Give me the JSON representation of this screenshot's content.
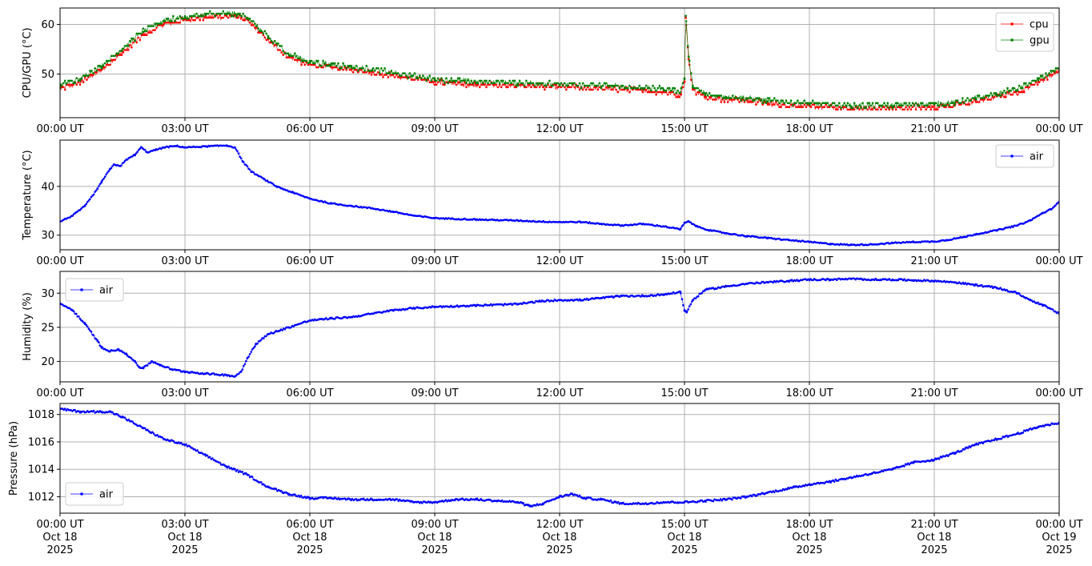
{
  "chart_data": [
    {
      "type": "line",
      "ylabel": "CPU/GPU (°C)",
      "ylim": [
        41.2,
        63.3
      ],
      "yticks": [
        50,
        60
      ],
      "grid": true,
      "legend": "top-right",
      "series": [
        {
          "name": "cpu",
          "color": "#ff0000",
          "x": [
            0,
            0.5,
            1,
            1.5,
            2,
            2.5,
            3,
            3.5,
            4,
            4.25,
            4.5,
            5,
            5.5,
            6,
            6.5,
            7,
            7.5,
            8,
            9,
            10,
            11,
            12,
            13,
            14,
            14.5,
            14.9,
            15,
            15.03,
            15.1,
            15.2,
            15.5,
            16,
            16.5,
            17,
            18,
            19,
            20,
            21,
            21.5,
            22,
            22.5,
            23,
            23.5,
            24
          ],
          "values": [
            47.2,
            48.5,
            51.0,
            54.5,
            58.0,
            60.2,
            61.0,
            61.6,
            61.7,
            61.7,
            61.0,
            57.0,
            53.5,
            52.0,
            51.5,
            51.0,
            50.5,
            49.8,
            48.5,
            48.0,
            47.8,
            47.5,
            47.2,
            46.8,
            46.5,
            46.0,
            48.5,
            61.3,
            53.0,
            47.0,
            45.5,
            45.0,
            44.8,
            44.2,
            43.6,
            43.2,
            43.2,
            43.6,
            43.8,
            44.6,
            45.5,
            46.5,
            48.5,
            50.8
          ]
        },
        {
          "name": "gpu",
          "color": "#008000",
          "x": [
            0,
            0.5,
            1,
            1.5,
            2,
            2.5,
            3,
            3.5,
            4,
            4.25,
            4.5,
            5,
            5.5,
            6,
            6.5,
            7,
            7.5,
            8,
            9,
            10,
            11,
            12,
            13,
            14,
            14.5,
            14.9,
            15,
            15.03,
            15.1,
            15.2,
            15.5,
            16,
            16.5,
            17,
            18,
            19,
            20,
            21,
            21.5,
            22,
            22.5,
            23,
            23.5,
            24
          ],
          "values": [
            47.6,
            49.0,
            51.5,
            55.0,
            58.5,
            60.7,
            61.3,
            61.9,
            62.0,
            62.0,
            61.3,
            57.3,
            53.8,
            52.3,
            51.8,
            51.3,
            50.8,
            50.1,
            48.8,
            48.3,
            48.1,
            47.8,
            47.5,
            47.1,
            46.8,
            46.3,
            49.0,
            61.7,
            53.5,
            47.3,
            45.8,
            45.3,
            45.0,
            44.5,
            43.9,
            43.5,
            43.5,
            43.9,
            44.1,
            44.9,
            45.8,
            46.8,
            48.8,
            51.0
          ]
        }
      ]
    },
    {
      "type": "line",
      "ylabel": "Temperature (°C)",
      "ylim": [
        27.0,
        49.5
      ],
      "yticks": [
        30,
        40
      ],
      "grid": true,
      "legend": "top-right",
      "series": [
        {
          "name": "air",
          "color": "#0000ff",
          "x": [
            0,
            0.3,
            0.6,
            0.9,
            1.0,
            1.2,
            1.3,
            1.45,
            1.6,
            1.8,
            1.95,
            2.1,
            2.3,
            2.5,
            2.8,
            3.0,
            3.5,
            4.0,
            4.2,
            4.4,
            4.6,
            4.9,
            5.2,
            5.6,
            6.0,
            6.5,
            7.0,
            7.5,
            8.0,
            8.5,
            9.0,
            10.0,
            11.0,
            11.5,
            12.0,
            12.5,
            13.0,
            13.5,
            14.0,
            14.5,
            14.9,
            15.0,
            15.1,
            15.3,
            15.6,
            16.0,
            16.5,
            17.0,
            17.5,
            18.0,
            18.5,
            19.0,
            19.5,
            20.0,
            20.5,
            21.0,
            21.3,
            21.7,
            22.0,
            22.5,
            23.0,
            23.3,
            23.6,
            23.8,
            24.0
          ],
          "values": [
            32.8,
            34.0,
            36.0,
            39.5,
            41.0,
            43.5,
            44.5,
            44.2,
            45.5,
            46.5,
            48.0,
            47.0,
            47.5,
            48.0,
            48.3,
            48.0,
            48.2,
            48.4,
            48.0,
            45.0,
            43.0,
            41.5,
            40.0,
            38.7,
            37.5,
            36.5,
            36.0,
            35.5,
            34.8,
            34.0,
            33.5,
            33.2,
            33.0,
            32.8,
            32.7,
            32.7,
            32.3,
            32.0,
            32.3,
            31.8,
            31.2,
            32.5,
            32.8,
            31.8,
            31.0,
            30.4,
            29.8,
            29.4,
            29.0,
            28.6,
            28.2,
            28.0,
            28.1,
            28.4,
            28.6,
            28.7,
            29.0,
            29.6,
            30.2,
            31.0,
            32.0,
            33.0,
            34.5,
            35.3,
            36.8
          ]
        }
      ]
    },
    {
      "type": "line",
      "ylabel": "Humidity (%)",
      "ylim": [
        17.0,
        33.2
      ],
      "yticks": [
        20,
        25,
        30
      ],
      "grid": true,
      "legend": "top-left",
      "series": [
        {
          "name": "air",
          "color": "#0000ff",
          "x": [
            0,
            0.3,
            0.6,
            0.9,
            1.0,
            1.2,
            1.4,
            1.6,
            1.8,
            1.9,
            2.0,
            2.2,
            2.4,
            2.7,
            3.0,
            3.5,
            4.0,
            4.2,
            4.35,
            4.5,
            4.7,
            5.0,
            5.5,
            6.0,
            6.5,
            7.0,
            7.5,
            8.0,
            8.5,
            9.0,
            10.0,
            11.0,
            11.5,
            12.0,
            12.5,
            13.0,
            13.5,
            14.0,
            14.5,
            14.9,
            15.0,
            15.05,
            15.2,
            15.5,
            16.0,
            16.5,
            17.0,
            17.5,
            18.0,
            18.5,
            19.0,
            19.5,
            20.0,
            20.5,
            21.0,
            21.5,
            22.0,
            22.5,
            23.0,
            23.3,
            23.6,
            24.0
          ],
          "values": [
            28.5,
            27.5,
            25.5,
            23.0,
            22.0,
            21.5,
            21.8,
            21.0,
            20.0,
            19.2,
            19.0,
            20.0,
            19.5,
            18.8,
            18.5,
            18.2,
            18.0,
            17.8,
            18.5,
            20.5,
            22.5,
            24.0,
            25.0,
            26.0,
            26.3,
            26.5,
            27.0,
            27.5,
            27.8,
            28.0,
            28.2,
            28.4,
            28.8,
            29.0,
            29.0,
            29.3,
            29.6,
            29.6,
            29.8,
            30.2,
            27.5,
            27.2,
            29.0,
            30.5,
            31.0,
            31.4,
            31.6,
            31.8,
            32.0,
            32.0,
            32.1,
            32.0,
            32.0,
            31.9,
            31.8,
            31.6,
            31.2,
            30.8,
            30.0,
            29.0,
            28.3,
            27.0
          ]
        }
      ]
    },
    {
      "type": "line",
      "ylabel": "Pressure (hPa)",
      "ylim": [
        1010.8,
        1018.8
      ],
      "yticks": [
        1012,
        1014,
        1016,
        1018
      ],
      "grid": true,
      "legend": "bottom-left",
      "series": [
        {
          "name": "air",
          "color": "#0000ff",
          "x": [
            0,
            0.5,
            1.0,
            1.2,
            1.5,
            2.0,
            2.5,
            3.0,
            3.5,
            4.0,
            4.5,
            5.0,
            5.5,
            6.0,
            6.5,
            7.0,
            7.5,
            8.0,
            8.5,
            9.0,
            9.5,
            10.0,
            10.5,
            11.0,
            11.3,
            11.6,
            12.0,
            12.3,
            12.6,
            13.0,
            13.5,
            14.0,
            14.5,
            15.0,
            15.5,
            16.0,
            16.5,
            17.0,
            17.5,
            18.0,
            18.5,
            19.0,
            19.5,
            20.0,
            20.5,
            21.0,
            21.5,
            22.0,
            22.5,
            23.0,
            23.5,
            24.0
          ],
          "values": [
            1018.4,
            1018.2,
            1018.2,
            1018.2,
            1017.8,
            1017.0,
            1016.2,
            1015.8,
            1015.0,
            1014.2,
            1013.6,
            1012.7,
            1012.2,
            1011.9,
            1011.9,
            1011.8,
            1011.8,
            1011.8,
            1011.6,
            1011.6,
            1011.8,
            1011.8,
            1011.7,
            1011.6,
            1011.3,
            1011.5,
            1012.0,
            1012.2,
            1011.9,
            1011.8,
            1011.5,
            1011.5,
            1011.6,
            1011.6,
            1011.7,
            1011.8,
            1012.0,
            1012.3,
            1012.6,
            1012.9,
            1013.1,
            1013.4,
            1013.7,
            1014.0,
            1014.5,
            1014.7,
            1015.2,
            1015.8,
            1016.2,
            1016.6,
            1017.1,
            1017.4
          ]
        }
      ]
    }
  ],
  "x_axis": {
    "range_hours": [
      0,
      24
    ],
    "tick_hours": [
      0,
      3,
      6,
      9,
      12,
      15,
      18,
      21,
      24
    ],
    "tick_labels": [
      "00:00 UT",
      "03:00 UT",
      "06:00 UT",
      "09:00 UT",
      "12:00 UT",
      "15:00 UT",
      "18:00 UT",
      "21:00 UT",
      "00:00 UT"
    ],
    "bottom_dates": [
      "Oct 18",
      "Oct 18",
      "Oct 18",
      "Oct 18",
      "Oct 18",
      "Oct 18",
      "Oct 18",
      "Oct 18",
      "Oct 19"
    ],
    "bottom_years": [
      "2025",
      "2025",
      "2025",
      "2025",
      "2025",
      "2025",
      "2025",
      "2025",
      "2025"
    ]
  }
}
